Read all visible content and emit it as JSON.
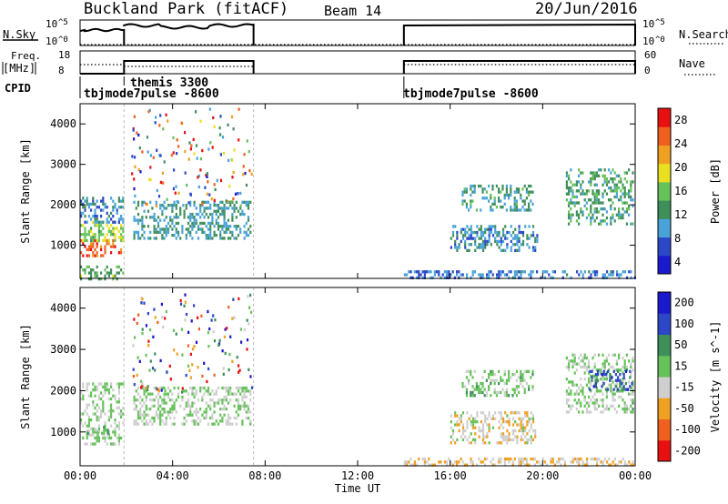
{
  "header": {
    "station": "Buckland Park (fitACF)",
    "beam": "Beam 14",
    "date": "20/Jun/2016"
  },
  "panels": {
    "nsky": {
      "label": "N.Sky",
      "ticks": [
        "10^5",
        "10^0"
      ],
      "right_label": "N.Search",
      "right_ticks": [
        "10^5",
        "10^0"
      ]
    },
    "freq": {
      "label_line1": "Freq.",
      "label_line2": "[MHz]",
      "ticks": [
        "18",
        "8"
      ],
      "right_label": "Nave",
      "right_ticks": [
        "60",
        "0"
      ]
    },
    "cpid": {
      "label": "CPID",
      "entries": [
        "tbjmode7pulse -8600",
        "themis 3300",
        "tbjmode7pulse -8600"
      ]
    }
  },
  "chart_data": [
    {
      "type": "heatmap",
      "title": "Power",
      "ylabel": "Slant Range [km]",
      "yticks": [
        "1000",
        "2000",
        "3000",
        "4000"
      ],
      "ylim": [
        180,
        4500
      ],
      "xlim_hours": [
        0,
        24
      ],
      "colorbar": {
        "label": "Power [dB]",
        "ticks": [
          "4",
          "8",
          "12",
          "16",
          "20",
          "24",
          "28"
        ],
        "range": [
          0,
          30
        ]
      },
      "regions": [
        {
          "t0": 0.0,
          "t1": 1.9,
          "r0": 750,
          "r1": 1150,
          "value": 26
        },
        {
          "t0": 0.0,
          "t1": 1.9,
          "r0": 1150,
          "r1": 1600,
          "value": 16
        },
        {
          "t0": 0.0,
          "t1": 1.9,
          "r0": 1600,
          "r1": 2200,
          "value": 8
        },
        {
          "t0": 0.0,
          "t1": 1.9,
          "r0": 200,
          "r1": 500,
          "value": 14
        },
        {
          "t0": 2.3,
          "t1": 7.4,
          "r0": 1200,
          "r1": 2100,
          "value": 10
        },
        {
          "t0": 14.0,
          "t1": 24.0,
          "r0": 180,
          "r1": 380,
          "value": 7
        },
        {
          "t0": 16.5,
          "t1": 19.6,
          "r0": 1900,
          "r1": 2500,
          "value": 11
        },
        {
          "t0": 16.0,
          "t1": 19.8,
          "r0": 900,
          "r1": 1500,
          "value": 9
        },
        {
          "t0": 21.0,
          "t1": 23.9,
          "r0": 1500,
          "r1": 2900,
          "value": 12
        }
      ]
    },
    {
      "type": "heatmap",
      "title": "Velocity",
      "ylabel": "Slant Range [km]",
      "yticks": [
        "1000",
        "2000",
        "3000",
        "4000"
      ],
      "ylim": [
        180,
        4500
      ],
      "xlim_hours": [
        0,
        24
      ],
      "xlabel": "Time UT",
      "xticks": [
        "00:00",
        "04:00",
        "08:00",
        "12:00",
        "16:00",
        "20:00",
        "00:00"
      ],
      "colorbar": {
        "label": "Velocity [m s^-1]",
        "ticks": [
          "200",
          "100",
          "50",
          "15",
          "-15",
          "-50",
          "-100",
          "-200"
        ],
        "range": [
          -250,
          250
        ]
      },
      "regions": [
        {
          "t0": 0.0,
          "t1": 1.9,
          "r0": 700,
          "r1": 2200,
          "value": -5
        },
        {
          "t0": 0.3,
          "t1": 1.2,
          "r0": 900,
          "r1": 1150,
          "value": 30
        },
        {
          "t0": 2.3,
          "t1": 7.4,
          "r0": 1200,
          "r1": 2100,
          "value": 0
        },
        {
          "t0": 14.0,
          "t1": 24.0,
          "r0": 180,
          "r1": 380,
          "value": -60
        },
        {
          "t0": 16.5,
          "t1": 19.6,
          "r0": 1900,
          "r1": 2500,
          "value": 30
        },
        {
          "t0": 16.0,
          "t1": 19.8,
          "r0": 700,
          "r1": 1500,
          "value": -40
        },
        {
          "t0": 21.0,
          "t1": 23.9,
          "r0": 1500,
          "r1": 2900,
          "value": 10
        },
        {
          "t0": 22.0,
          "t1": 23.9,
          "r0": 2000,
          "r1": 2500,
          "value": 150
        }
      ]
    }
  ],
  "colors": {
    "power": [
      "#1a1acc",
      "#2c48c8",
      "#4aa3d8",
      "#3e8f5a",
      "#66c25a",
      "#e8e020",
      "#f0a020",
      "#f06020",
      "#e81010"
    ],
    "velocity": [
      "#e81010",
      "#f06020",
      "#f0a020",
      "#cfcfcf",
      "#66c25a",
      "#3e8f5a",
      "#2c48c8",
      "#1a1acc"
    ]
  }
}
